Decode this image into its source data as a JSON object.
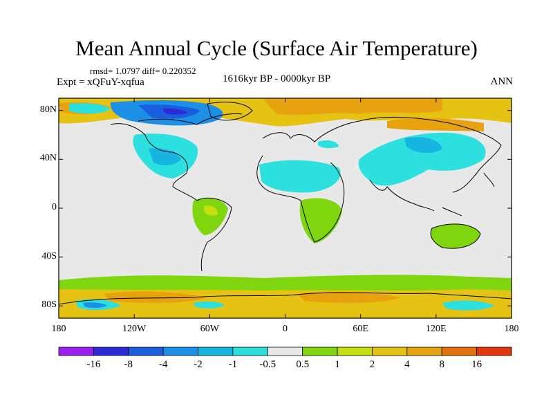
{
  "title": "Mean Annual Cycle (Surface Air Temperature)",
  "stats": "rmsd= 1.0797 diff= 0.220352",
  "experiment": "Expt = xQFuY-xqfua",
  "period": "1616kyr BP - 0000kyr BP",
  "season": "ANN",
  "map": {
    "lon_range": [
      -180,
      180
    ],
    "lat_range": [
      -90,
      90
    ],
    "lat_ticks": [
      {
        "value": 80,
        "label": "80N"
      },
      {
        "value": 40,
        "label": "40N"
      },
      {
        "value": 0,
        "label": "0"
      },
      {
        "value": -40,
        "label": "40S"
      },
      {
        "value": -80,
        "label": "80S"
      }
    ],
    "lon_ticks": [
      {
        "value": -180,
        "label": "180"
      },
      {
        "value": -120,
        "label": "120W"
      },
      {
        "value": -60,
        "label": "60W"
      },
      {
        "value": 0,
        "label": "0"
      },
      {
        "value": 60,
        "label": "60E"
      },
      {
        "value": 120,
        "label": "120E"
      },
      {
        "value": 180,
        "label": "180"
      }
    ]
  },
  "colorbar": {
    "colors": [
      "#9b1ff0",
      "#2b2bd9",
      "#1a5ee0",
      "#1c8fe6",
      "#16b4e0",
      "#2de0e0",
      "#e8e8e8",
      "#7fd60f",
      "#c4e00f",
      "#e6c212",
      "#e8a20e",
      "#e4700b",
      "#e0360a"
    ],
    "labels": [
      "-16",
      "-8",
      "-4",
      "-2",
      "-1",
      "-0.5",
      "0.5",
      "1",
      "2",
      "4",
      "8",
      "16"
    ]
  }
}
